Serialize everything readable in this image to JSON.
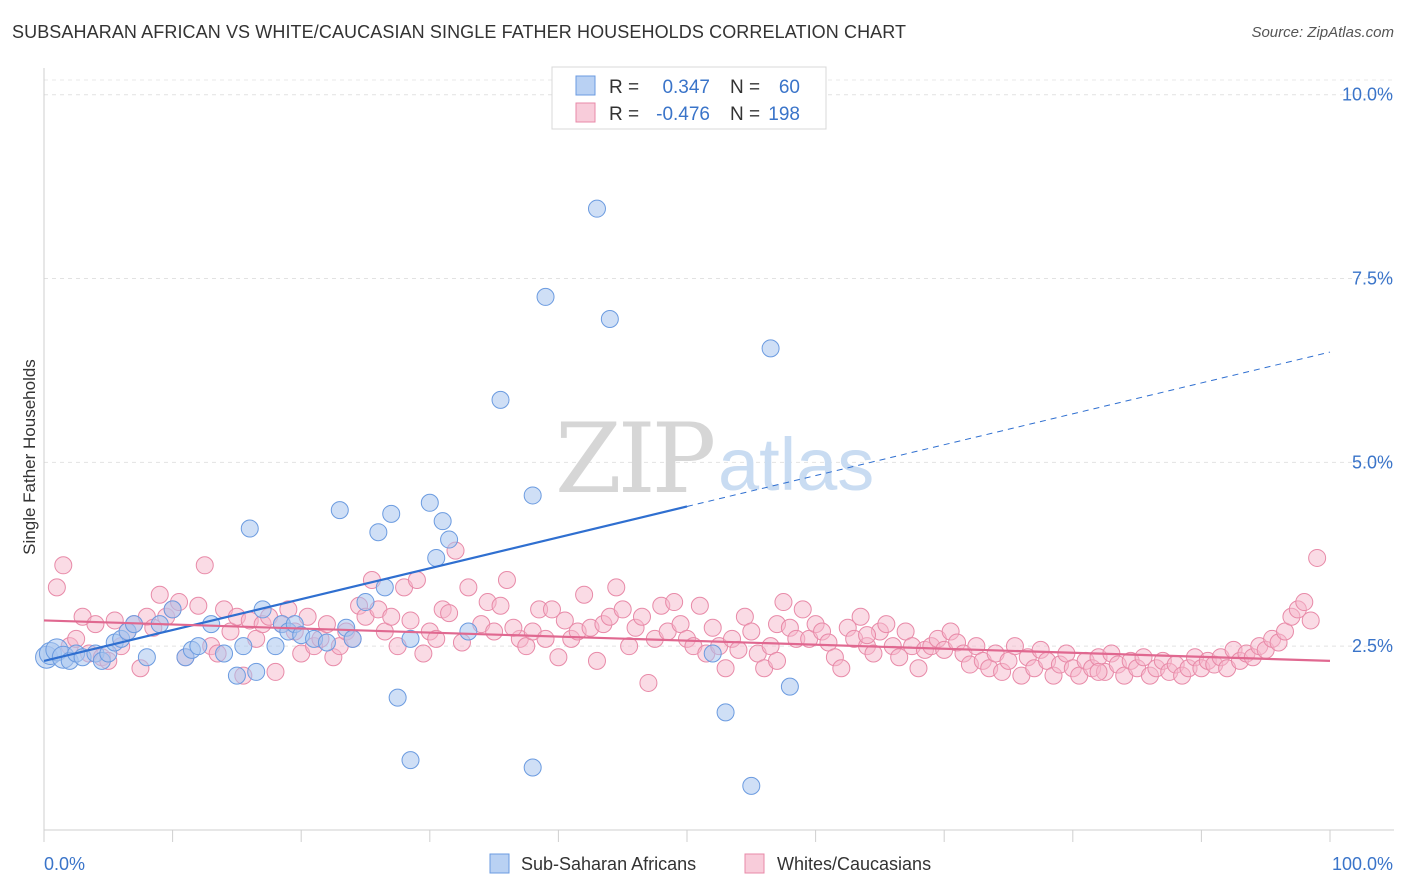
{
  "title": "SUBSAHARAN AFRICAN VS WHITE/CAUCASIAN SINGLE FATHER HOUSEHOLDS CORRELATION CHART",
  "source": "Source: ZipAtlas.com",
  "watermark": {
    "zip": "ZIP",
    "atlas": "atlas"
  },
  "legend_stats": [
    {
      "r_label": "R =",
      "r_value": "0.347",
      "n_label": "N =",
      "n_value": "60",
      "color": "#a8c4ef",
      "stroke": "#5a8fd8"
    },
    {
      "r_label": "R =",
      "r_value": "-0.476",
      "n_label": "N =",
      "n_value": "198",
      "color": "#f5b8cb",
      "stroke": "#e88aa8"
    }
  ],
  "chart_data": {
    "type": "scatter",
    "title": "SUBSAHARAN AFRICAN VS WHITE/CAUCASIAN SINGLE FATHER HOUSEHOLDS CORRELATION CHART",
    "xlabel": "",
    "ylabel": "Single Father Households",
    "xlim": [
      0,
      100
    ],
    "ylim": [
      0,
      10.2
    ],
    "x_tick_labels": [
      "0.0%",
      "100.0%"
    ],
    "y_ticks": [
      2.5,
      5.0,
      7.5,
      10.0
    ],
    "y_tick_labels": [
      "2.5%",
      "5.0%",
      "7.5%",
      "10.0%"
    ],
    "grid": true,
    "legend_position": "bottom",
    "series": [
      {
        "name": "Sub-Saharan Africans",
        "color": "#a8c4ef",
        "stroke": "#6b9be0",
        "line_color": "#2f6fd0",
        "trend": {
          "x0": 0,
          "y0": 2.3,
          "x1": 50,
          "y1": 4.4,
          "dash_to_x": 100,
          "dash_to_y": 6.5
        },
        "points": [
          [
            0.2,
            2.35
          ],
          [
            0.5,
            2.4
          ],
          [
            1.0,
            2.45
          ],
          [
            1.5,
            2.35
          ],
          [
            2.0,
            2.3
          ],
          [
            2.5,
            2.4
          ],
          [
            3.0,
            2.35
          ],
          [
            4.0,
            2.4
          ],
          [
            4.5,
            2.3
          ],
          [
            5.0,
            2.4
          ],
          [
            5.5,
            2.55
          ],
          [
            6.0,
            2.6
          ],
          [
            6.5,
            2.7
          ],
          [
            7.0,
            2.8
          ],
          [
            8.0,
            2.35
          ],
          [
            9.0,
            2.8
          ],
          [
            10.0,
            3.0
          ],
          [
            11.0,
            2.35
          ],
          [
            11.5,
            2.45
          ],
          [
            12.0,
            2.5
          ],
          [
            13.0,
            2.8
          ],
          [
            14.0,
            2.4
          ],
          [
            15.0,
            2.1
          ],
          [
            15.5,
            2.5
          ],
          [
            16.0,
            4.1
          ],
          [
            16.5,
            2.15
          ],
          [
            17.0,
            3.0
          ],
          [
            18.0,
            2.5
          ],
          [
            18.5,
            2.8
          ],
          [
            19.0,
            2.7
          ],
          [
            19.5,
            2.8
          ],
          [
            20.0,
            2.65
          ],
          [
            21.0,
            2.6
          ],
          [
            22.0,
            2.55
          ],
          [
            23.0,
            4.35
          ],
          [
            23.5,
            2.75
          ],
          [
            24.0,
            2.6
          ],
          [
            25.0,
            3.1
          ],
          [
            26.0,
            4.05
          ],
          [
            26.5,
            3.3
          ],
          [
            27.0,
            4.3
          ],
          [
            27.5,
            1.8
          ],
          [
            28.5,
            0.95
          ],
          [
            28.5,
            2.6
          ],
          [
            30.5,
            3.7
          ],
          [
            30.0,
            4.45
          ],
          [
            31.0,
            4.2
          ],
          [
            31.5,
            3.95
          ],
          [
            33.0,
            2.7
          ],
          [
            35.5,
            5.85
          ],
          [
            38.0,
            0.85
          ],
          [
            38.0,
            4.55
          ],
          [
            39.0,
            7.25
          ],
          [
            43.0,
            8.45
          ],
          [
            44.0,
            6.95
          ],
          [
            52.0,
            2.4
          ],
          [
            53.0,
            1.6
          ],
          [
            55.0,
            0.6
          ],
          [
            56.5,
            6.55
          ],
          [
            58.0,
            1.95
          ]
        ]
      },
      {
        "name": "Whites/Caucasians",
        "color": "#f5b8cb",
        "stroke": "#e88aa8",
        "line_color": "#e06890",
        "trend": {
          "x0": 0,
          "y0": 2.85,
          "x1": 100,
          "y1": 2.3
        },
        "points": [
          [
            1.0,
            3.3
          ],
          [
            1.5,
            3.6
          ],
          [
            2.0,
            2.5
          ],
          [
            2.5,
            2.6
          ],
          [
            3.0,
            2.9
          ],
          [
            3.5,
            2.4
          ],
          [
            4.0,
            2.8
          ],
          [
            4.5,
            2.35
          ],
          [
            5.0,
            2.3
          ],
          [
            5.5,
            2.85
          ],
          [
            6.0,
            2.5
          ],
          [
            6.5,
            2.7
          ],
          [
            7.0,
            2.8
          ],
          [
            7.5,
            2.2
          ],
          [
            8.0,
            2.9
          ],
          [
            8.5,
            2.75
          ],
          [
            9.0,
            3.2
          ],
          [
            9.5,
            2.9
          ],
          [
            10.0,
            3.0
          ],
          [
            10.5,
            3.1
          ],
          [
            11.0,
            2.35
          ],
          [
            12.0,
            3.05
          ],
          [
            12.5,
            3.6
          ],
          [
            13.0,
            2.5
          ],
          [
            13.5,
            2.4
          ],
          [
            14.0,
            3.0
          ],
          [
            14.5,
            2.7
          ],
          [
            15.0,
            2.9
          ],
          [
            15.5,
            2.1
          ],
          [
            16.0,
            2.85
          ],
          [
            16.5,
            2.6
          ],
          [
            17.0,
            2.8
          ],
          [
            17.5,
            2.9
          ],
          [
            18.0,
            2.15
          ],
          [
            18.5,
            2.8
          ],
          [
            19.0,
            3.0
          ],
          [
            19.5,
            2.7
          ],
          [
            20.0,
            2.4
          ],
          [
            20.5,
            2.9
          ],
          [
            21.0,
            2.5
          ],
          [
            21.5,
            2.6
          ],
          [
            22.0,
            2.8
          ],
          [
            22.5,
            2.35
          ],
          [
            23.0,
            2.5
          ],
          [
            23.5,
            2.7
          ],
          [
            24.0,
            2.6
          ],
          [
            24.5,
            3.05
          ],
          [
            25.0,
            2.9
          ],
          [
            25.5,
            3.4
          ],
          [
            26.0,
            3.0
          ],
          [
            26.5,
            2.7
          ],
          [
            27.0,
            2.9
          ],
          [
            27.5,
            2.5
          ],
          [
            28.0,
            3.3
          ],
          [
            28.5,
            2.85
          ],
          [
            29.0,
            3.4
          ],
          [
            29.5,
            2.4
          ],
          [
            30.0,
            2.7
          ],
          [
            30.5,
            2.6
          ],
          [
            31.0,
            3.0
          ],
          [
            31.5,
            2.95
          ],
          [
            32.0,
            3.8
          ],
          [
            32.5,
            2.55
          ],
          [
            33.0,
            3.3
          ],
          [
            34.0,
            2.8
          ],
          [
            34.5,
            3.1
          ],
          [
            35.0,
            2.7
          ],
          [
            35.5,
            3.05
          ],
          [
            36.0,
            3.4
          ],
          [
            37.0,
            2.6
          ],
          [
            37.5,
            2.5
          ],
          [
            38.0,
            2.7
          ],
          [
            38.5,
            3.0
          ],
          [
            39.0,
            2.6
          ],
          [
            39.5,
            3.0
          ],
          [
            40.0,
            2.35
          ],
          [
            40.5,
            2.85
          ],
          [
            41.0,
            2.6
          ],
          [
            41.5,
            2.7
          ],
          [
            42.0,
            3.2
          ],
          [
            42.5,
            2.75
          ],
          [
            43.0,
            2.3
          ],
          [
            43.5,
            2.8
          ],
          [
            44.0,
            2.9
          ],
          [
            44.5,
            3.3
          ],
          [
            45.0,
            3.0
          ],
          [
            45.5,
            2.5
          ],
          [
            46.0,
            2.75
          ],
          [
            46.5,
            2.9
          ],
          [
            47.0,
            2.0
          ],
          [
            47.5,
            2.6
          ],
          [
            48.0,
            3.05
          ],
          [
            48.5,
            2.7
          ],
          [
            49.0,
            3.1
          ],
          [
            49.5,
            2.8
          ],
          [
            50.0,
            2.6
          ],
          [
            50.5,
            2.5
          ],
          [
            51.0,
            3.05
          ],
          [
            51.5,
            2.4
          ],
          [
            52.0,
            2.75
          ],
          [
            52.5,
            2.5
          ],
          [
            53.0,
            2.2
          ],
          [
            53.5,
            2.6
          ],
          [
            54.0,
            2.45
          ],
          [
            54.5,
            2.9
          ],
          [
            55.0,
            2.7
          ],
          [
            55.5,
            2.4
          ],
          [
            56.0,
            2.2
          ],
          [
            56.5,
            2.5
          ],
          [
            57.0,
            2.8
          ],
          [
            57.5,
            3.1
          ],
          [
            58.0,
            2.75
          ],
          [
            58.5,
            2.6
          ],
          [
            59.0,
            3.0
          ],
          [
            59.5,
            2.6
          ],
          [
            60.0,
            2.8
          ],
          [
            60.5,
            2.7
          ],
          [
            61.0,
            2.55
          ],
          [
            61.5,
            2.35
          ],
          [
            62.0,
            2.2
          ],
          [
            62.5,
            2.75
          ],
          [
            63.0,
            2.6
          ],
          [
            63.5,
            2.9
          ],
          [
            64.0,
            2.5
          ],
          [
            64.5,
            2.4
          ],
          [
            65.0,
            2.7
          ],
          [
            65.5,
            2.8
          ],
          [
            66.0,
            2.5
          ],
          [
            66.5,
            2.35
          ],
          [
            67.0,
            2.7
          ],
          [
            67.5,
            2.5
          ],
          [
            68.0,
            2.2
          ],
          [
            68.5,
            2.45
          ],
          [
            69.0,
            2.5
          ],
          [
            69.5,
            2.6
          ],
          [
            70.0,
            2.45
          ],
          [
            70.5,
            2.7
          ],
          [
            71.0,
            2.55
          ],
          [
            71.5,
            2.4
          ],
          [
            72.0,
            2.25
          ],
          [
            72.5,
            2.5
          ],
          [
            73.0,
            2.3
          ],
          [
            73.5,
            2.2
          ],
          [
            74.0,
            2.4
          ],
          [
            74.5,
            2.15
          ],
          [
            75.0,
            2.3
          ],
          [
            75.5,
            2.5
          ],
          [
            76.0,
            2.1
          ],
          [
            76.5,
            2.35
          ],
          [
            77.0,
            2.2
          ],
          [
            77.5,
            2.45
          ],
          [
            78.0,
            2.3
          ],
          [
            78.5,
            2.1
          ],
          [
            79.0,
            2.25
          ],
          [
            79.5,
            2.4
          ],
          [
            80.0,
            2.2
          ],
          [
            80.5,
            2.1
          ],
          [
            81.0,
            2.3
          ],
          [
            81.5,
            2.2
          ],
          [
            82.0,
            2.35
          ],
          [
            82.5,
            2.15
          ],
          [
            83.0,
            2.4
          ],
          [
            83.5,
            2.25
          ],
          [
            84.0,
            2.1
          ],
          [
            84.5,
            2.3
          ],
          [
            85.0,
            2.2
          ],
          [
            85.5,
            2.35
          ],
          [
            86.0,
            2.1
          ],
          [
            86.5,
            2.2
          ],
          [
            87.0,
            2.3
          ],
          [
            87.5,
            2.15
          ],
          [
            88.0,
            2.25
          ],
          [
            88.5,
            2.1
          ],
          [
            89.0,
            2.2
          ],
          [
            89.5,
            2.35
          ],
          [
            90.0,
            2.2
          ],
          [
            90.5,
            2.3
          ],
          [
            91.0,
            2.25
          ],
          [
            91.5,
            2.35
          ],
          [
            92.0,
            2.2
          ],
          [
            92.5,
            2.45
          ],
          [
            93.0,
            2.3
          ],
          [
            93.5,
            2.4
          ],
          [
            94.0,
            2.35
          ],
          [
            94.5,
            2.5
          ],
          [
            95.0,
            2.45
          ],
          [
            95.5,
            2.6
          ],
          [
            96.0,
            2.55
          ],
          [
            96.5,
            2.7
          ],
          [
            97.0,
            2.9
          ],
          [
            97.5,
            3.0
          ],
          [
            98.0,
            3.1
          ],
          [
            98.5,
            2.85
          ],
          [
            99.0,
            3.7
          ],
          [
            82.0,
            2.15
          ],
          [
            64.0,
            2.65
          ],
          [
            57.0,
            2.3
          ],
          [
            36.5,
            2.75
          ]
        ]
      }
    ]
  }
}
